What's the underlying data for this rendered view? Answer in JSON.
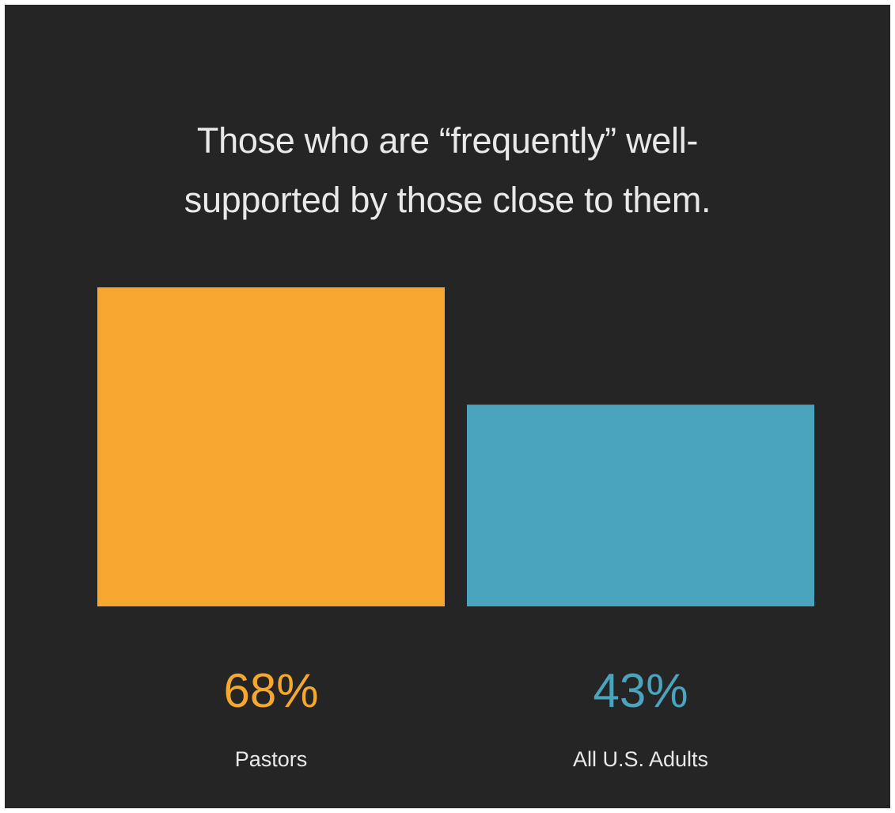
{
  "chart_data": {
    "type": "bar",
    "title_lines": [
      "Those who are “frequently” well-",
      "supported by those close to them."
    ],
    "categories": [
      "Pastors",
      "All U.S. Adults"
    ],
    "values": [
      68,
      43
    ],
    "value_labels": [
      "68%",
      "43%"
    ],
    "colors": [
      "#f5a730",
      "#4ba4bd"
    ],
    "background": "#252525",
    "ylim": [
      0,
      68
    ],
    "grid": false,
    "legend": "none"
  }
}
